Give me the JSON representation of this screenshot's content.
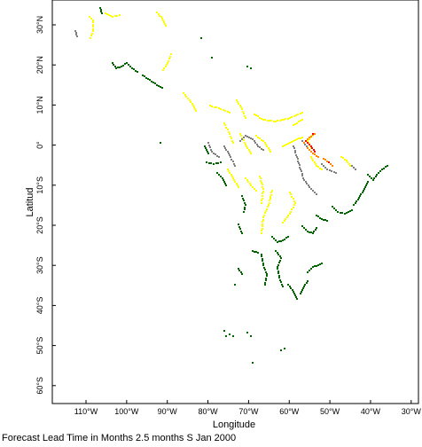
{
  "map": {
    "x_axis_title": "Longitude",
    "y_axis_title": "Latitud",
    "lon_ticks": [
      "110°W",
      "100°W",
      "90°W",
      "80°W",
      "70°W",
      "60°W",
      "50°W",
      "40°W",
      "30°W"
    ],
    "lat_ticks": [
      "30°N",
      "20°N",
      "10°N",
      "0°",
      "10°S",
      "20°S",
      "30°S",
      "40°S",
      "50°S",
      "60°S"
    ],
    "colors": {
      "yellow": "#ffff00",
      "green": "#006400",
      "gray": "#808080",
      "orange": "#ff8c00",
      "red": "#ff0000"
    }
  },
  "caption": "Forecast Lead Time in Months 2.5 months S Jan 2000"
}
